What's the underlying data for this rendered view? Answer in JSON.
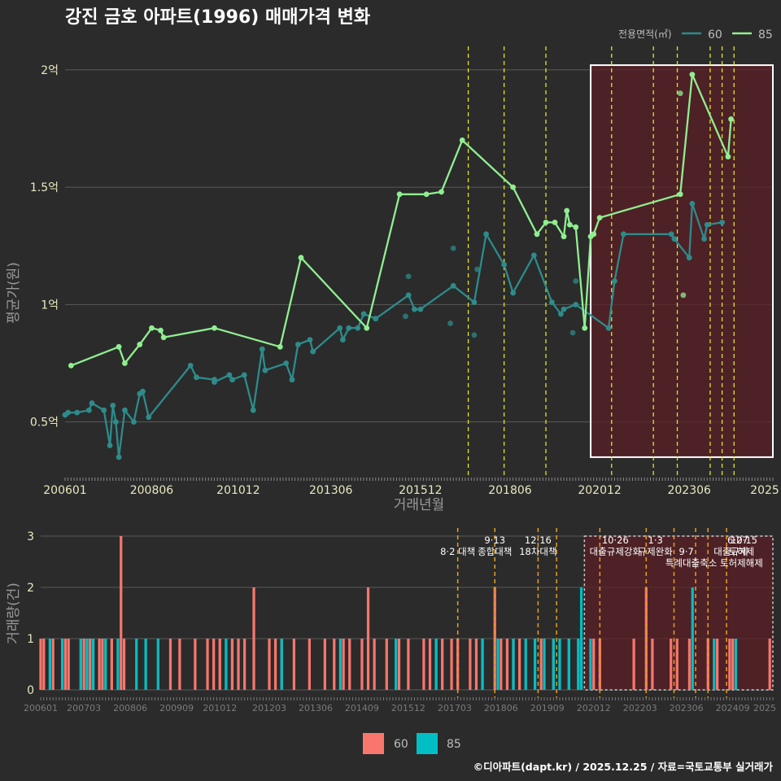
{
  "title": "강진 금호 아파트(1996) 매매가격 변화",
  "credit": "©디아파트(dapt.kr) / 2025.12.25 / 자료=국토교통부 실거래가",
  "colors": {
    "bg": "#2b2b2b",
    "grid": "#5a5a5a",
    "line60": "#2e8b8b",
    "line85": "#90ee90",
    "bar60": "#f8766d",
    "bar85": "#00bfc4",
    "policy_line": "#e3e322",
    "policy_line_bottom": "#e6a020",
    "highlight_fill": "#5a1f26",
    "highlight_stroke": "#ffffff"
  },
  "chart_data": [
    {
      "type": "line",
      "title": "강진 금호 아파트(1996) 매매가격 변화",
      "xlabel": "거래년월",
      "ylabel": "평균가(원)",
      "x_unit": "month index from 2006-01",
      "xlim": [
        0,
        237
      ],
      "ylim": [
        0.27,
        2.1
      ],
      "x_ticks": [
        {
          "x": 0,
          "label": "200601"
        },
        {
          "x": 29,
          "label": "200806"
        },
        {
          "x": 58,
          "label": "201012"
        },
        {
          "x": 89,
          "label": "201306"
        },
        {
          "x": 119,
          "label": "201512"
        },
        {
          "x": 149,
          "label": "201806"
        },
        {
          "x": 179,
          "label": "202012"
        },
        {
          "x": 209,
          "label": "202306"
        },
        {
          "x": 239,
          "label": "2025"
        }
      ],
      "y_ticks": [
        {
          "v": 0.5,
          "label": "0.5억"
        },
        {
          "v": 1.0,
          "label": "1억"
        },
        {
          "v": 1.5,
          "label": "1.5억"
        },
        {
          "v": 2.0,
          "label": "2억"
        }
      ],
      "legend": {
        "title": "전용면적(㎡)",
        "entries": [
          "60",
          "85"
        ],
        "position": "top-right"
      },
      "series": [
        {
          "name": "60",
          "points": [
            [
              0,
              0.53
            ],
            [
              1,
              0.54
            ],
            [
              4,
              0.54
            ],
            [
              8,
              0.55
            ],
            [
              9,
              0.58
            ],
            [
              13,
              0.55
            ],
            [
              15,
              0.4
            ],
            [
              16,
              0.57
            ],
            [
              17,
              0.5
            ],
            [
              18,
              0.35
            ],
            [
              20,
              0.55
            ],
            [
              23,
              0.5
            ],
            [
              25,
              0.62
            ],
            [
              26,
              0.63
            ],
            [
              28,
              0.52
            ],
            [
              42,
              0.74
            ],
            [
              44,
              0.69
            ],
            [
              50,
              0.68
            ],
            [
              50,
              0.67
            ],
            [
              55,
              0.7
            ],
            [
              56,
              0.68
            ],
            [
              60,
              0.7
            ],
            [
              63,
              0.55
            ],
            [
              66,
              0.81
            ],
            [
              67,
              0.72
            ],
            [
              74,
              0.75
            ],
            [
              76,
              0.68
            ],
            [
              78,
              0.83
            ],
            [
              82,
              0.85
            ],
            [
              83,
              0.8
            ],
            [
              92,
              0.9
            ],
            [
              93,
              0.85
            ],
            [
              95,
              0.9
            ],
            [
              98,
              0.9
            ],
            [
              100,
              0.96
            ],
            [
              104,
              0.94
            ],
            [
              115,
              1.04
            ],
            [
              117,
              0.98
            ],
            [
              119,
              0.98
            ],
            [
              130,
              1.08
            ],
            [
              137,
              1.01
            ],
            [
              141,
              1.3
            ],
            [
              147,
              1.17
            ],
            [
              150,
              1.05
            ],
            [
              157,
              1.21
            ],
            [
              163,
              1.01
            ],
            [
              166,
              0.96
            ],
            [
              167,
              0.98
            ],
            [
              171,
              1.0
            ],
            [
              182,
              0.9
            ],
            [
              184,
              1.1
            ],
            [
              187,
              1.3
            ],
            [
              203,
              1.3
            ],
            [
              204,
              1.28
            ],
            [
              209,
              1.2
            ],
            [
              210,
              1.43
            ],
            [
              214,
              1.28
            ],
            [
              215,
              1.34
            ],
            [
              220,
              1.35
            ]
          ]
        },
        {
          "name": "85",
          "points": [
            [
              2,
              0.74
            ],
            [
              18,
              0.82
            ],
            [
              20,
              0.75
            ],
            [
              25,
              0.83
            ],
            [
              29,
              0.9
            ],
            [
              32,
              0.89
            ],
            [
              33,
              0.86
            ],
            [
              50,
              0.9
            ],
            [
              72,
              0.82
            ],
            [
              79,
              1.2
            ],
            [
              101,
              0.9
            ],
            [
              112,
              1.47
            ],
            [
              121,
              1.47
            ],
            [
              126,
              1.48
            ],
            [
              133,
              1.7
            ],
            [
              150,
              1.5
            ],
            [
              158,
              1.3
            ],
            [
              161,
              1.35
            ],
            [
              164,
              1.35
            ],
            [
              167,
              1.29
            ],
            [
              168,
              1.4
            ],
            [
              169,
              1.34
            ],
            [
              171,
              1.33
            ],
            [
              174,
              0.9
            ],
            [
              176,
              1.29
            ],
            [
              177,
              1.3
            ],
            [
              179,
              1.37
            ],
            [
              206,
              1.47
            ],
            [
              210,
              1.98
            ],
            [
              222,
              1.63
            ],
            [
              223,
              1.79
            ]
          ]
        }
      ],
      "scatter_extra": [
        {
          "series": "60",
          "x": 130,
          "y": 1.24
        },
        {
          "series": "60",
          "x": 129,
          "y": 0.92
        },
        {
          "series": "60",
          "x": 137,
          "y": 0.87
        },
        {
          "series": "60",
          "x": 138,
          "y": 1.15
        },
        {
          "series": "60",
          "x": 115,
          "y": 1.12
        },
        {
          "series": "60",
          "x": 114,
          "y": 0.95
        },
        {
          "series": "60",
          "x": 171,
          "y": 1.1
        },
        {
          "series": "60",
          "x": 170,
          "y": 0.88
        },
        {
          "series": "85",
          "x": 207,
          "y": 1.04
        },
        {
          "series": "85",
          "x": 206,
          "y": 1.9
        }
      ],
      "policy_lines_x": [
        135,
        147,
        161,
        183,
        197,
        205,
        216,
        220,
        224
      ],
      "highlight_range": {
        "x": [
          176,
          237
        ],
        "y": [
          0.35,
          2.02
        ]
      }
    },
    {
      "type": "bar",
      "ylabel": "거래량(건)",
      "xlim": [
        0,
        237
      ],
      "ylim": [
        0,
        3
      ],
      "x_ticks": [
        {
          "x": 0,
          "label": "200601"
        },
        {
          "x": 14,
          "label": "200703"
        },
        {
          "x": 29,
          "label": "200806"
        },
        {
          "x": 44,
          "label": "200909"
        },
        {
          "x": 58,
          "label": "201012"
        },
        {
          "x": 74,
          "label": "201203"
        },
        {
          "x": 89,
          "label": "201306"
        },
        {
          "x": 104,
          "label": "201409"
        },
        {
          "x": 119,
          "label": "201512"
        },
        {
          "x": 134,
          "label": "201703"
        },
        {
          "x": 149,
          "label": "201806"
        },
        {
          "x": 164,
          "label": "201909"
        },
        {
          "x": 179,
          "label": "202012"
        },
        {
          "x": 194,
          "label": "202203"
        },
        {
          "x": 209,
          "label": "202306"
        },
        {
          "x": 224,
          "label": "202409"
        },
        {
          "x": 236,
          "label": "2025"
        }
      ],
      "y_ticks": [
        0,
        1,
        2,
        3
      ],
      "legend": {
        "entries": [
          "60",
          "85"
        ],
        "position": "bottom"
      },
      "series": [
        {
          "name": "60",
          "bars": [
            [
              0,
              1
            ],
            [
              1,
              1
            ],
            [
              4,
              1
            ],
            [
              8,
              1
            ],
            [
              9,
              1
            ],
            [
              13,
              1
            ],
            [
              14,
              1
            ],
            [
              15,
              1
            ],
            [
              16,
              1
            ],
            [
              17,
              1
            ],
            [
              19,
              1
            ],
            [
              20,
              1
            ],
            [
              23,
              1
            ],
            [
              26,
              3
            ],
            [
              27,
              1
            ],
            [
              42,
              1
            ],
            [
              45,
              1
            ],
            [
              50,
              1
            ],
            [
              54,
              1
            ],
            [
              56,
              1
            ],
            [
              58,
              1
            ],
            [
              62,
              1
            ],
            [
              64,
              1
            ],
            [
              66,
              1
            ],
            [
              69,
              2
            ],
            [
              74,
              1
            ],
            [
              76,
              1
            ],
            [
              78,
              1
            ],
            [
              82,
              1
            ],
            [
              87,
              1
            ],
            [
              92,
              1
            ],
            [
              95,
              1
            ],
            [
              98,
              1
            ],
            [
              100,
              1
            ],
            [
              104,
              1
            ],
            [
              106,
              2
            ],
            [
              108,
              1
            ],
            [
              112,
              1
            ],
            [
              116,
              1
            ],
            [
              119,
              1
            ],
            [
              124,
              1
            ],
            [
              126,
              1
            ],
            [
              128,
              1
            ],
            [
              130,
              1
            ],
            [
              133,
              1
            ],
            [
              135,
              1
            ],
            [
              139,
              1
            ],
            [
              141,
              1
            ],
            [
              143,
              1
            ],
            [
              147,
              2
            ],
            [
              149,
              1
            ],
            [
              151,
              1
            ],
            [
              153,
              1
            ],
            [
              155,
              1
            ],
            [
              162,
              1
            ],
            [
              166,
              1
            ],
            [
              171,
              1
            ],
            [
              175,
              1
            ],
            [
              179,
              1
            ],
            [
              181,
              1
            ],
            [
              192,
              1
            ],
            [
              196,
              2
            ],
            [
              198,
              1
            ],
            [
              204,
              1
            ],
            [
              206,
              1
            ],
            [
              210,
              1
            ],
            [
              216,
              1
            ],
            [
              219,
              1
            ],
            [
              223,
              1
            ],
            [
              224,
              1
            ],
            [
              236,
              1
            ]
          ]
        },
        {
          "name": "85",
          "bars": [
            [
              3,
              1
            ],
            [
              7,
              1
            ],
            [
              13,
              1
            ],
            [
              15,
              1
            ],
            [
              17,
              1
            ],
            [
              21,
              1
            ],
            [
              25,
              1
            ],
            [
              31,
              1
            ],
            [
              34,
              1
            ],
            [
              38,
              1
            ],
            [
              60,
              1
            ],
            [
              78,
              1
            ],
            [
              97,
              1
            ],
            [
              115,
              1
            ],
            [
              128,
              1
            ],
            [
              143,
              1
            ],
            [
              148,
              1
            ],
            [
              153,
              1
            ],
            [
              157,
              1
            ],
            [
              160,
              1
            ],
            [
              163,
              1
            ],
            [
              166,
              1
            ],
            [
              168,
              1
            ],
            [
              171,
              1
            ],
            [
              174,
              1
            ],
            [
              175,
              2
            ],
            [
              178,
              1
            ],
            [
              211,
              2
            ],
            [
              218,
              1
            ],
            [
              225,
              1
            ]
          ]
        }
      ],
      "policy_lines_x": [
        135,
        147,
        161,
        167,
        181,
        196,
        205,
        212,
        216,
        222
      ],
      "highlight_range": {
        "x": [
          176,
          237
        ],
        "y": [
          0,
          3
        ]
      },
      "annotations": [
        {
          "x": 135,
          "row": 0,
          "text": "8·2 대책"
        },
        {
          "x": 147,
          "row": -1,
          "text": "9·13"
        },
        {
          "x": 147,
          "row": 0,
          "text": "종합대책"
        },
        {
          "x": 161,
          "row": -1,
          "text": "12·16"
        },
        {
          "x": 161,
          "row": 0,
          "text": "18차대책"
        },
        {
          "x": 186,
          "row": -1,
          "text": "10·26"
        },
        {
          "x": 186,
          "row": 0,
          "text": "대출규제강화"
        },
        {
          "x": 199,
          "row": -1,
          "text": "1·3"
        },
        {
          "x": 199,
          "row": 0,
          "text": "규제완화"
        },
        {
          "x": 209,
          "row": 0,
          "text": "9·7"
        },
        {
          "x": 218,
          "row": 1,
          "text": "특례대출축소 토허제해제"
        },
        {
          "x": 229,
          "row": -1,
          "text": "6·27"
        },
        {
          "x": 232,
          "row": -1,
          "text": "10·15"
        },
        {
          "x": 229,
          "row": 0,
          "text": "대출규제"
        },
        {
          "x": 231,
          "row": 0,
          "text": "토허제"
        }
      ]
    }
  ]
}
